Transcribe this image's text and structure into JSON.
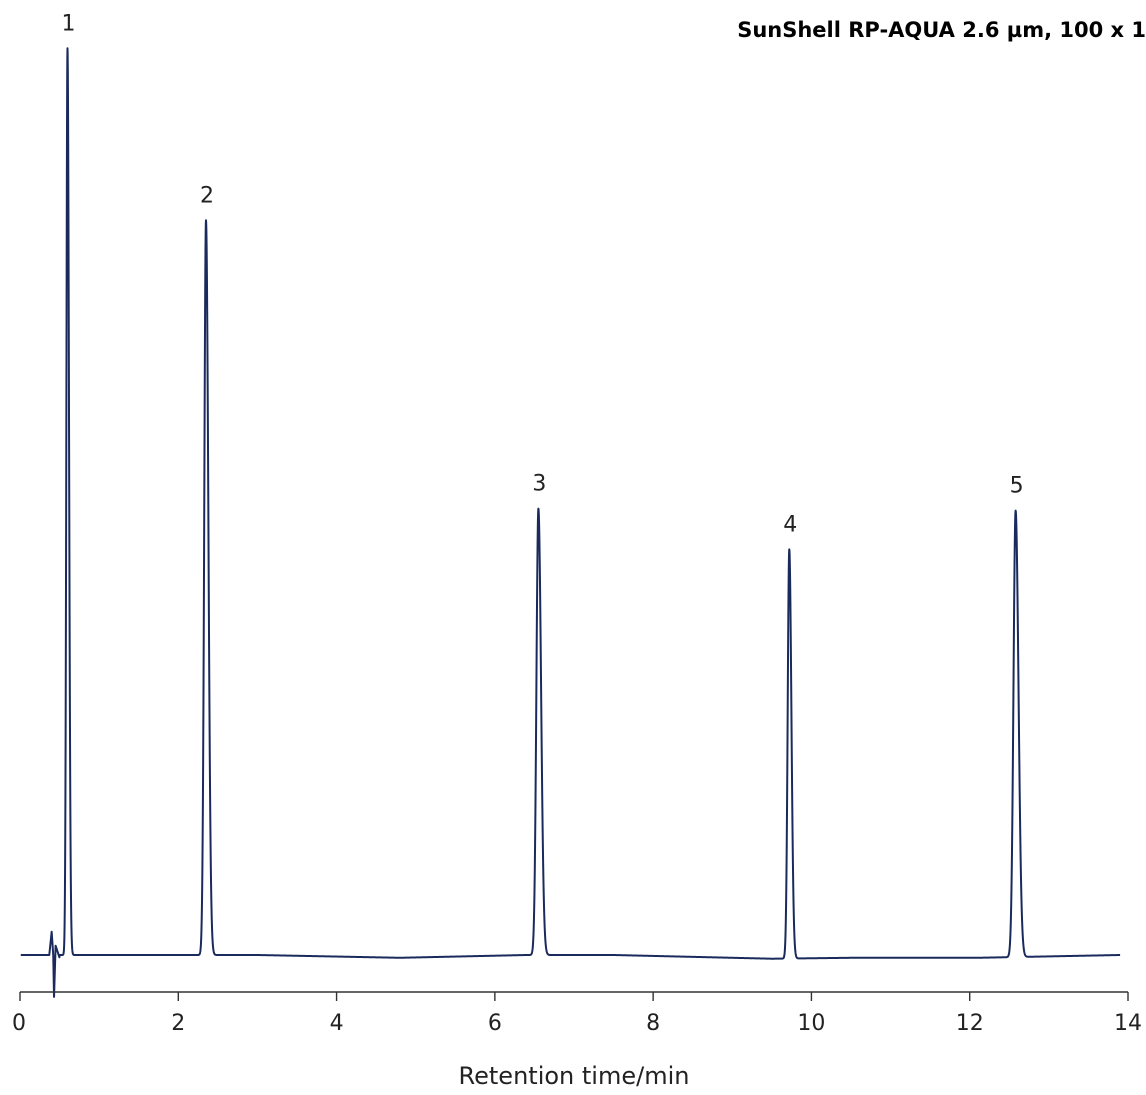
{
  "chart_data": {
    "type": "line",
    "title": "SunShell RP-AQUA  2.6 µm, 100 x 1",
    "xlabel": "Retention time/min",
    "ylabel": "",
    "xlim": [
      0,
      14
    ],
    "ylim": [
      -0.6,
      10.2
    ],
    "xticks": [
      0,
      2,
      4,
      6,
      8,
      10,
      12,
      14
    ],
    "x_tick_labels": [
      "0",
      "2",
      "4",
      "6",
      "8",
      "10",
      "12",
      "14"
    ],
    "grid": false,
    "line_color": "#1a2a5c",
    "baseline": [
      [
        0.01,
        0.0
      ],
      [
        1.4,
        0.0
      ],
      [
        2.27,
        0.0
      ],
      [
        3.0,
        0.0
      ],
      [
        4.8,
        -0.03
      ],
      [
        6.4,
        0.0
      ],
      [
        7.5,
        0.0
      ],
      [
        9.5,
        -0.04
      ],
      [
        10.5,
        -0.03
      ],
      [
        12.1,
        -0.03
      ],
      [
        13.9,
        0.0
      ]
    ],
    "disturbance": [
      [
        0.37,
        0.0
      ],
      [
        0.4,
        0.25
      ],
      [
        0.42,
        0.0
      ],
      [
        0.43,
        -0.45
      ],
      [
        0.45,
        0.1
      ],
      [
        0.5,
        -0.03
      ]
    ],
    "peaks": [
      {
        "label": "1",
        "rt": 0.6,
        "height": 9.75,
        "width": 0.014
      },
      {
        "label": "2",
        "rt": 2.35,
        "height": 7.9,
        "width": 0.022
      },
      {
        "label": "3",
        "rt": 6.55,
        "height": 4.8,
        "width": 0.025
      },
      {
        "label": "4",
        "rt": 9.72,
        "height": 4.4,
        "width": 0.02
      },
      {
        "label": "5",
        "rt": 12.58,
        "height": 4.8,
        "width": 0.027
      }
    ]
  }
}
